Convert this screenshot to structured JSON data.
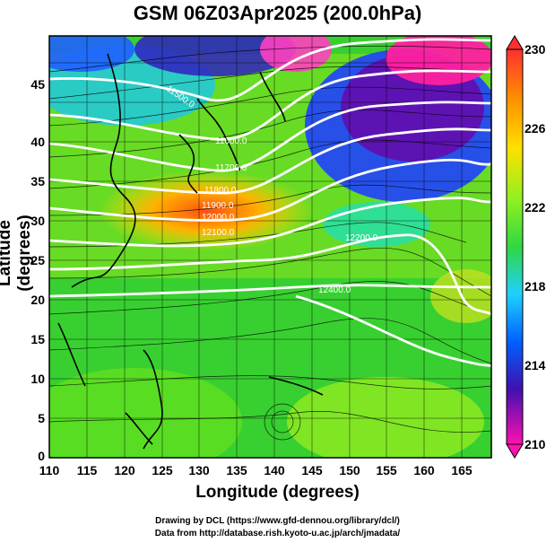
{
  "title": "GSM 06Z03Apr2025 (200.0hPa)",
  "xlabel": "Longitude (degrees)",
  "ylabel": "Latitude  (degrees)",
  "x_ticks": [
    "110",
    "115",
    "120",
    "125",
    "130",
    "135",
    "140",
    "145",
    "150",
    "155",
    "160",
    "165"
  ],
  "y_ticks": [
    "0",
    "5",
    "10",
    "15",
    "20",
    "25",
    "30",
    "35",
    "40",
    "45"
  ],
  "colorbar": {
    "ticks": [
      "230",
      "226",
      "222",
      "218",
      "214",
      "210"
    ],
    "colors": [
      "#ff2020",
      "#ff8000",
      "#ffe000",
      "#c0ff20",
      "#40e040",
      "#20c8ff",
      "#0060ff",
      "#2000a0",
      "#c000c0",
      "#ff20a0"
    ]
  },
  "contour_labels": [
    "11500.0",
    "11600.0",
    "11700.0",
    "11800.0",
    "11900.0",
    "12000.0",
    "12100.0",
    "12200.0",
    "12400.0"
  ],
  "credits": [
    "Drawing by DCL (https://www.gfd-dennou.org/library/dcl/)",
    "Data from http://database.rish.kyoto-u.ac.jp/arch/jmadata/"
  ],
  "chart_data": {
    "type": "heatmap",
    "title": "GSM 06Z03Apr2025 (200.0hPa)",
    "xlabel": "Longitude (degrees)",
    "ylabel": "Latitude  (degrees)",
    "xlim": [
      110,
      169
    ],
    "ylim": [
      0,
      50
    ],
    "color_range": [
      210,
      230
    ],
    "grid": true,
    "fields": [
      "temperature (shaded)",
      "geopotential height (contours)",
      "wind (streamlines)"
    ]
  }
}
